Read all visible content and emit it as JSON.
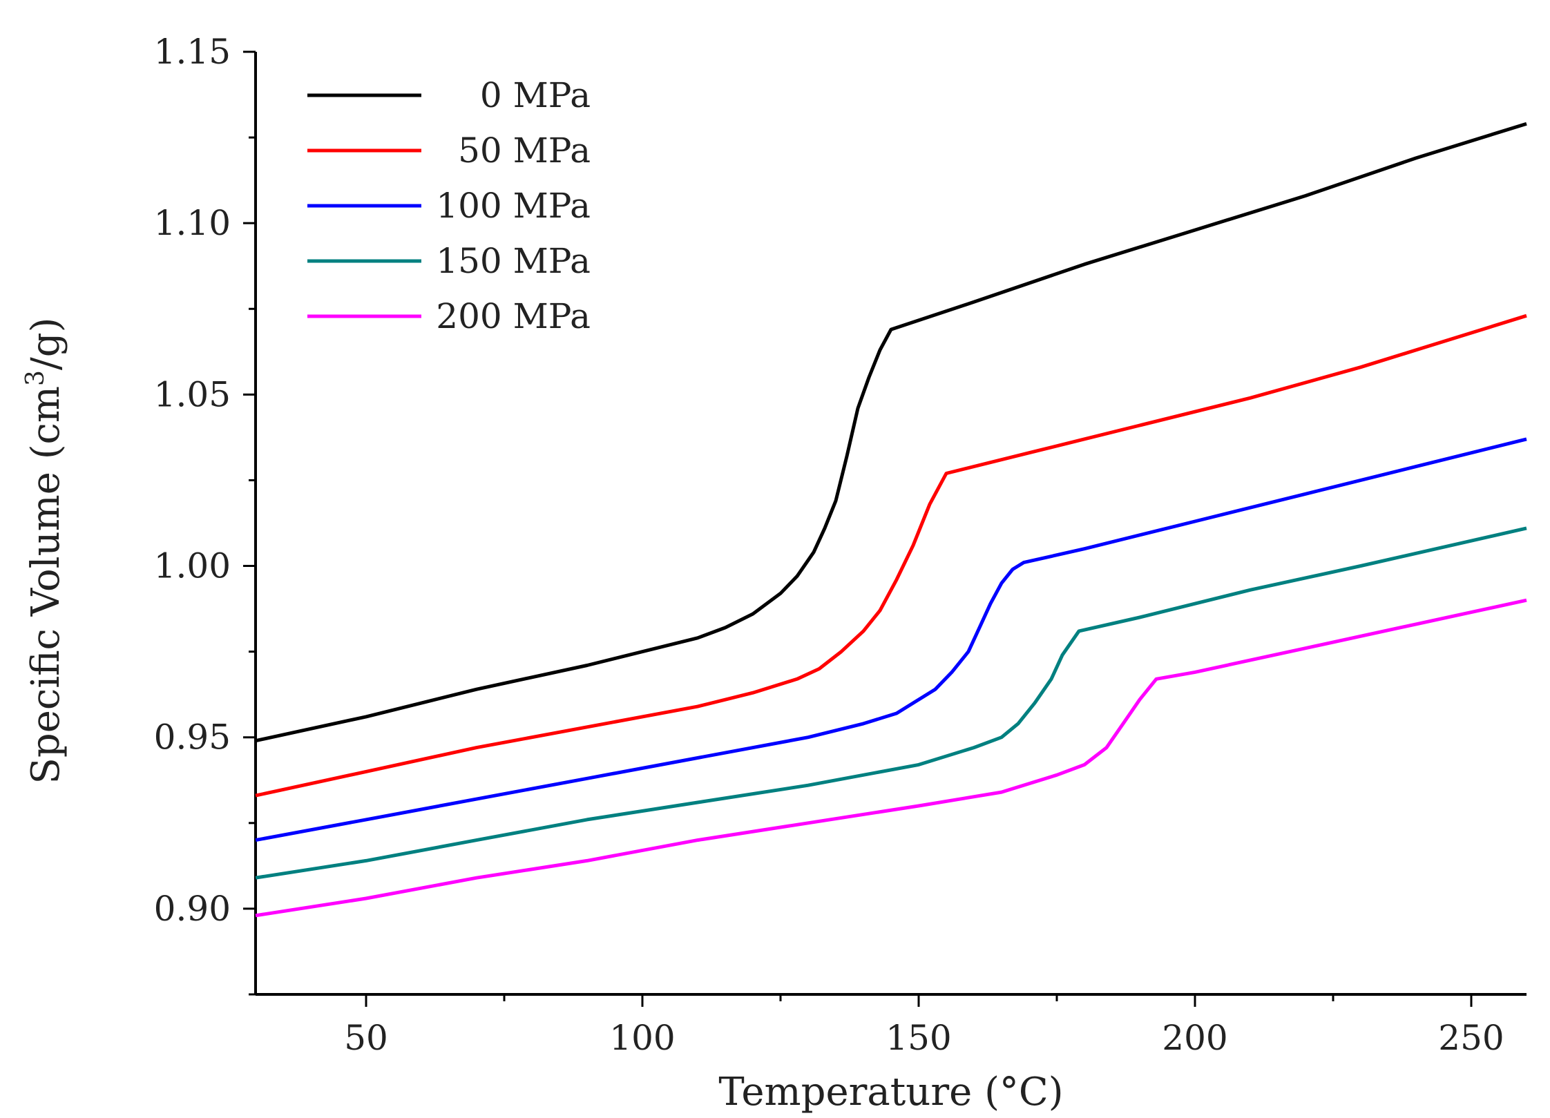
{
  "chart_data": {
    "type": "line",
    "title": "",
    "xlabel": "Temperature (°C)",
    "ylabel_main": "Specific Volume (cm",
    "ylabel_sup": "3",
    "ylabel_tail": "/g)",
    "xlim": [
      30,
      260
    ],
    "ylim": [
      0.875,
      1.15
    ],
    "xticks": [
      50,
      100,
      150,
      200,
      250
    ],
    "xtick_labels": [
      "50",
      "100",
      "150",
      "200",
      "250"
    ],
    "yticks": [
      0.9,
      0.95,
      1.0,
      1.05,
      1.1,
      1.15
    ],
    "ytick_labels": [
      "0.90",
      "0.95",
      "1.00",
      "1.05",
      "1.10",
      "1.15"
    ],
    "legend_position": "top-left",
    "series": [
      {
        "name": "0 MPa",
        "color": "#000000",
        "x": [
          30,
          50,
          70,
          90,
          110,
          115,
          120,
          125,
          128,
          131,
          133,
          135,
          137,
          139,
          141,
          143,
          145,
          160,
          180,
          200,
          220,
          240,
          260
        ],
        "y": [
          0.949,
          0.956,
          0.964,
          0.971,
          0.979,
          0.982,
          0.986,
          0.992,
          0.997,
          1.004,
          1.011,
          1.019,
          1.032,
          1.046,
          1.055,
          1.063,
          1.069,
          1.077,
          1.088,
          1.098,
          1.108,
          1.119,
          1.129
        ]
      },
      {
        "name": "50 MPa",
        "color": "#ff0000",
        "x": [
          30,
          50,
          70,
          90,
          110,
          120,
          128,
          132,
          136,
          140,
          143,
          146,
          149,
          152,
          155,
          170,
          190,
          210,
          230,
          260
        ],
        "y": [
          0.933,
          0.94,
          0.947,
          0.953,
          0.959,
          0.963,
          0.967,
          0.97,
          0.975,
          0.981,
          0.987,
          0.996,
          1.006,
          1.018,
          1.027,
          1.033,
          1.041,
          1.049,
          1.058,
          1.073
        ]
      },
      {
        "name": "100 MPa",
        "color": "#0000ff",
        "x": [
          30,
          50,
          70,
          90,
          110,
          130,
          140,
          146,
          150,
          153,
          156,
          159,
          161,
          163,
          165,
          167,
          169,
          180,
          200,
          220,
          240,
          260
        ],
        "y": [
          0.92,
          0.926,
          0.932,
          0.938,
          0.944,
          0.95,
          0.954,
          0.957,
          0.961,
          0.964,
          0.969,
          0.975,
          0.982,
          0.989,
          0.995,
          0.999,
          1.001,
          1.005,
          1.013,
          1.021,
          1.029,
          1.037
        ]
      },
      {
        "name": "150 MPa",
        "color": "#008080",
        "x": [
          30,
          50,
          70,
          90,
          110,
          130,
          150,
          160,
          165,
          168,
          171,
          174,
          176,
          179,
          190,
          210,
          230,
          260
        ],
        "y": [
          0.909,
          0.914,
          0.92,
          0.926,
          0.931,
          0.936,
          0.942,
          0.947,
          0.95,
          0.954,
          0.96,
          0.967,
          0.974,
          0.981,
          0.985,
          0.993,
          1.0,
          1.011
        ]
      },
      {
        "name": "200 MPa",
        "color": "#ff00ff",
        "x": [
          30,
          50,
          70,
          90,
          110,
          130,
          150,
          165,
          175,
          180,
          184,
          187,
          190,
          193,
          200,
          220,
          240,
          260
        ],
        "y": [
          0.898,
          0.903,
          0.909,
          0.914,
          0.92,
          0.925,
          0.93,
          0.934,
          0.939,
          0.942,
          0.947,
          0.954,
          0.961,
          0.967,
          0.969,
          0.976,
          0.983,
          0.99
        ]
      }
    ]
  }
}
